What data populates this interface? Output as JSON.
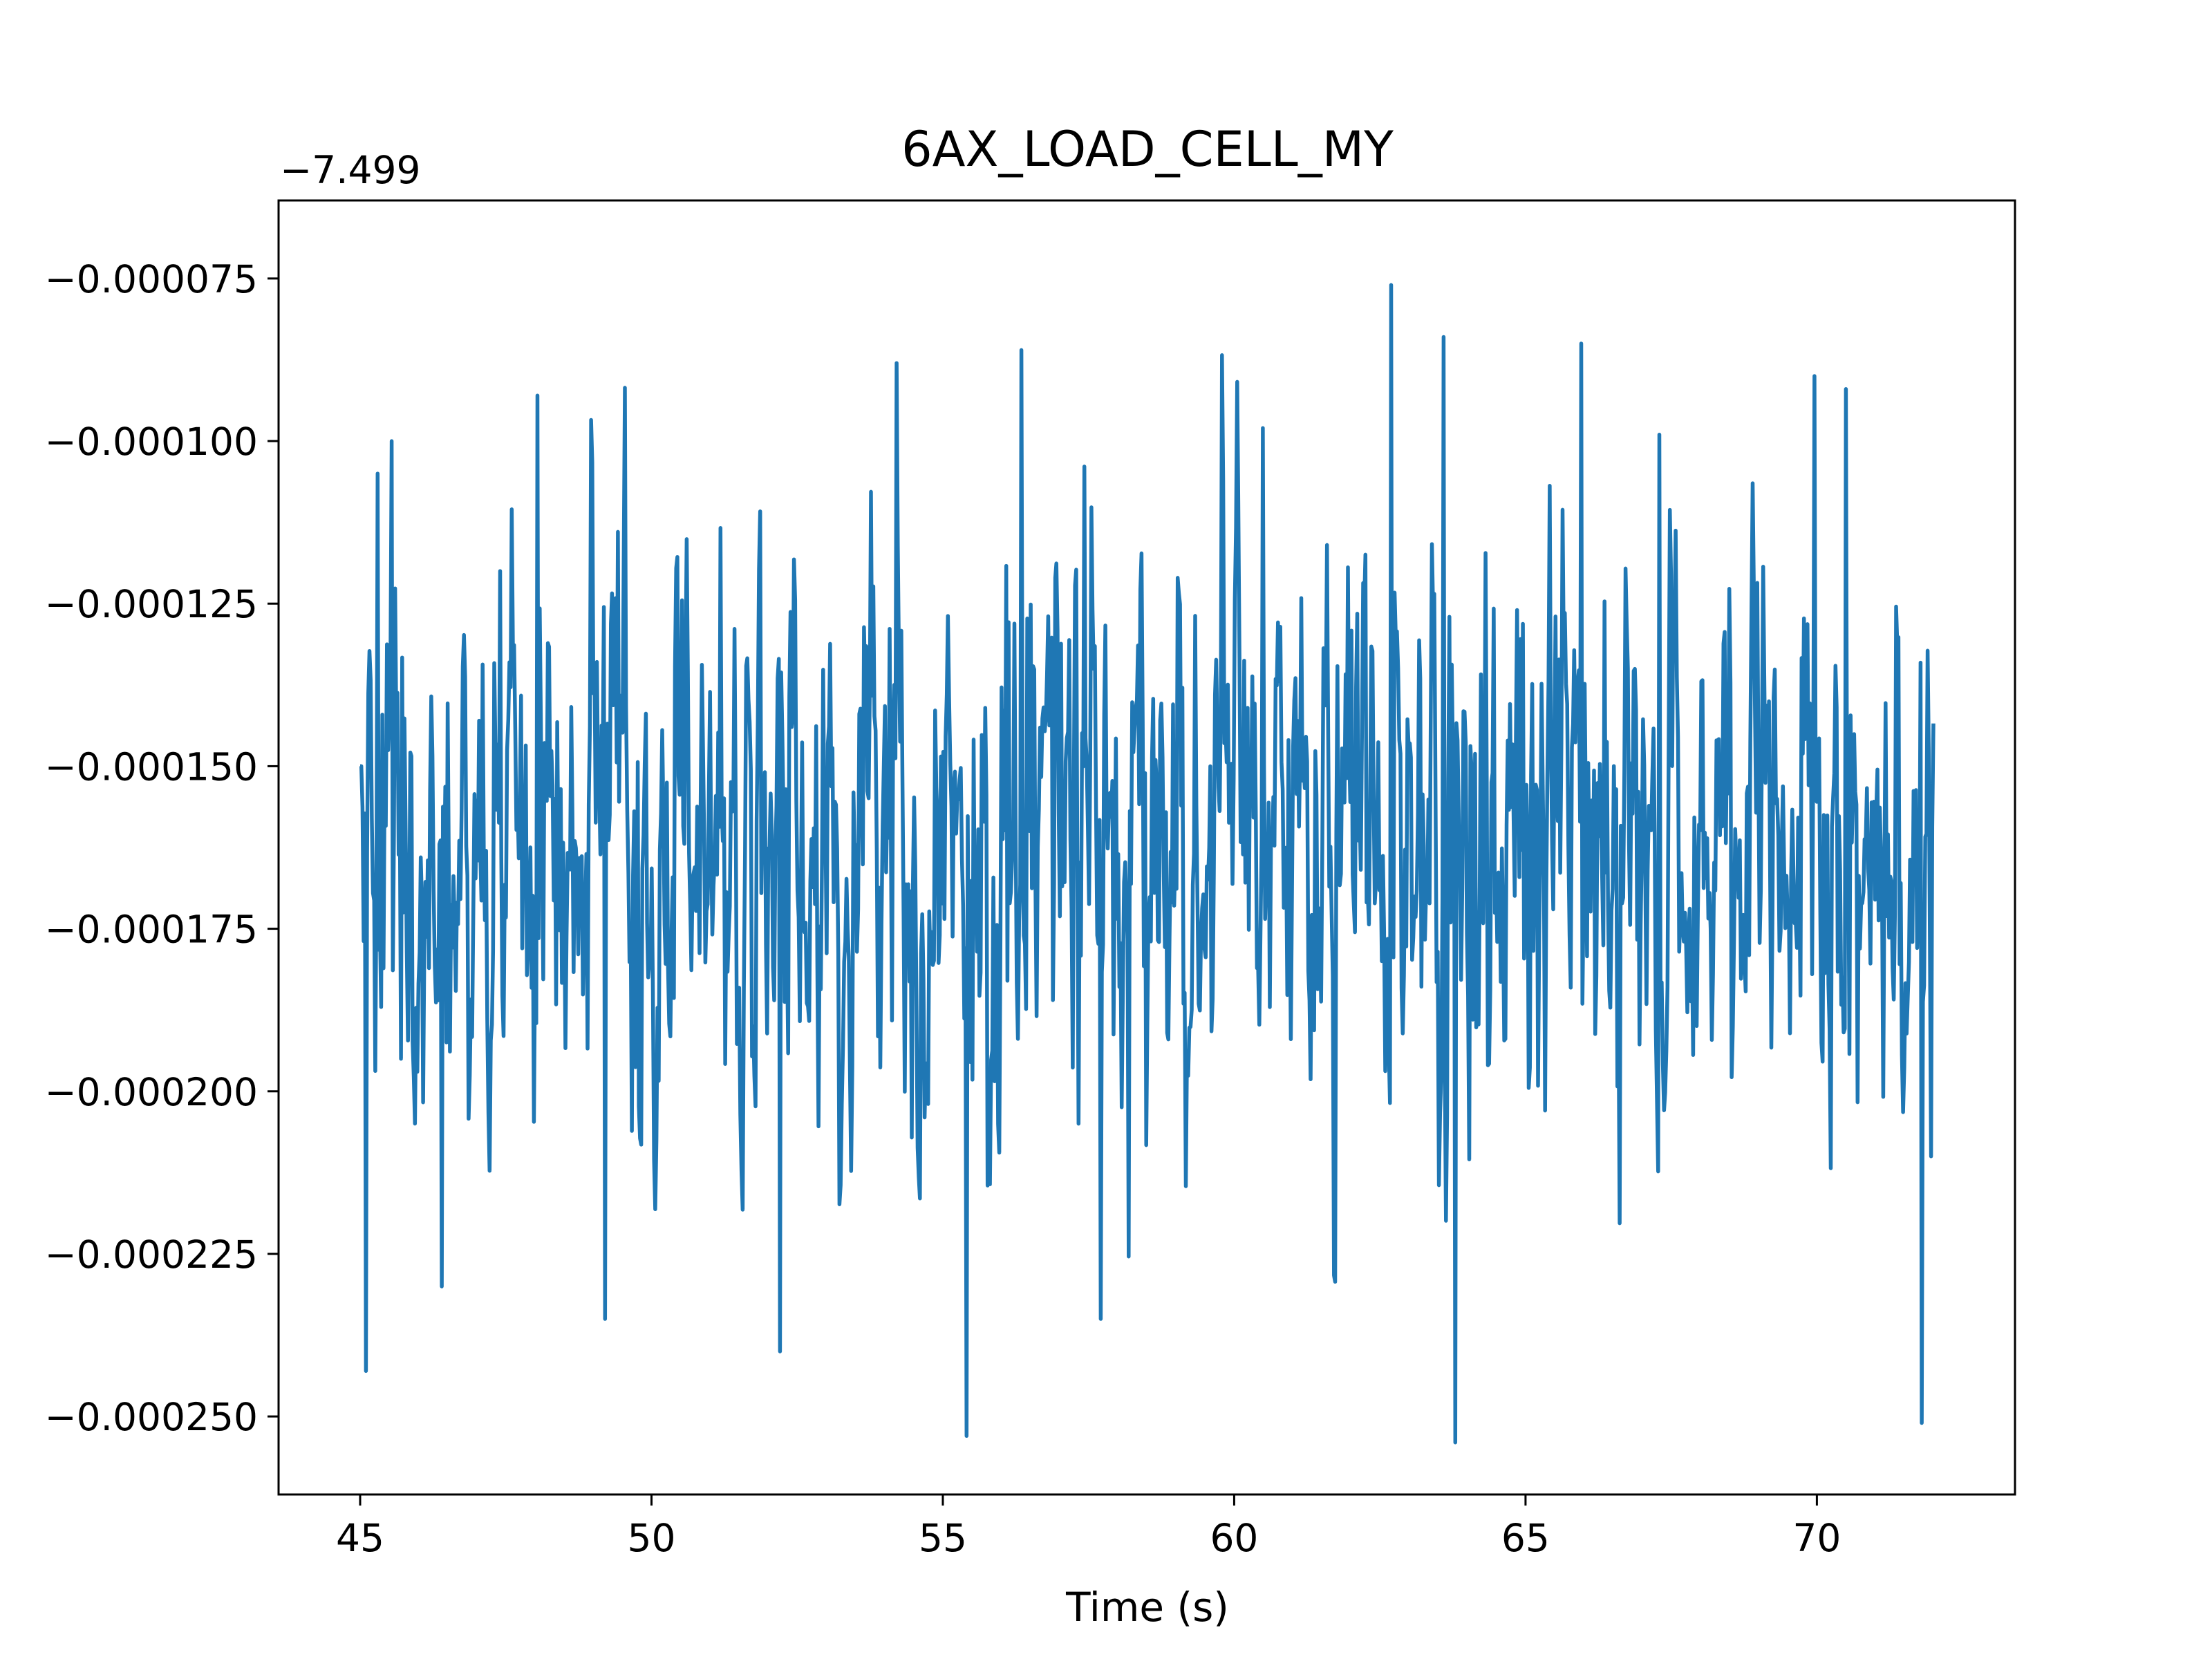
{
  "chart_data": {
    "type": "line",
    "title": "6AX_LOAD_CELL_MY",
    "xlabel": "Time (s)",
    "ylabel": "",
    "offset_label": "−7.499",
    "y_offset": -7.499,
    "xlim": [
      43.6,
      73.4
    ],
    "ylim": [
      -0.000262,
      -6.3e-05
    ],
    "x_ticks": [
      45,
      50,
      55,
      60,
      65,
      70
    ],
    "x_tick_labels": [
      "45",
      "50",
      "55",
      "60",
      "65",
      "70"
    ],
    "y_ticks": [
      -7.5e-05,
      -0.0001,
      -0.000125,
      -0.00015,
      -0.000175,
      -0.0002,
      -0.000225,
      -0.00025
    ],
    "y_tick_labels": [
      "−0.000075",
      "−0.000100",
      "−0.000125",
      "−0.000150",
      "−0.000175",
      "−0.000200",
      "−0.000225",
      "−0.000250"
    ],
    "grid": false,
    "series": [
      {
        "name": "6AX_LOAD_CELL_MY",
        "color": "#1f77b4",
        "x_start": 45.0,
        "x_end": 72.0,
        "n_points": 1350,
        "mean": -0.000165,
        "std": 2.5e-05,
        "min": -0.000254,
        "max": -7.6e-05,
        "x": [
          45.02,
          45.1,
          45.3,
          45.55,
          45.7,
          46.4,
          48.05,
          49.2,
          52.2,
          54.2,
          55.4,
          56.35,
          57.7,
          60.5,
          62.7,
          63.6,
          63.8,
          65.95,
          67.3,
          69.95,
          70.5,
          71.8,
          71.95
        ],
        "values": [
          -0.00015,
          -0.000243,
          -0.000105,
          -0.0001,
          -0.000195,
          -0.00023,
          -9.3e-05,
          -0.000235,
          -0.00024,
          -8.8e-05,
          -0.000253,
          -8.6e-05,
          -0.000235,
          -9.8e-05,
          -7.6e-05,
          -8.4e-05,
          -0.000254,
          -8.5e-05,
          -9.9e-05,
          -9e-05,
          -9.2e-05,
          -0.000251,
          -0.00021
        ]
      }
    ]
  }
}
